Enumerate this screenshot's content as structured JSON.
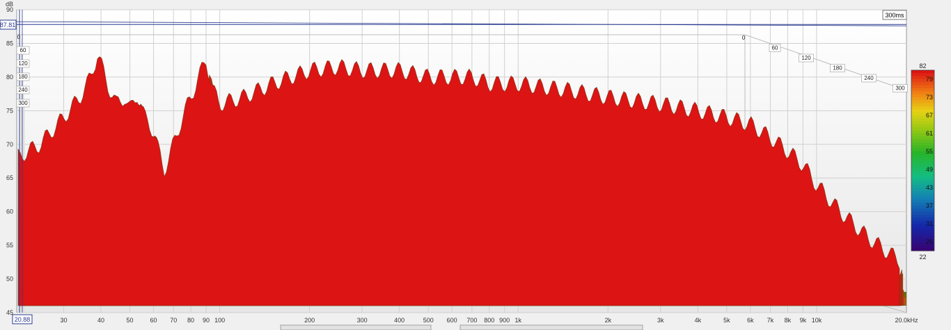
{
  "chart_data": {
    "type": "waterfall",
    "y_unit": "dB",
    "y_ticks": [
      "90",
      "85",
      "80",
      "75",
      "70",
      "65",
      "60",
      "55",
      "50",
      "45"
    ],
    "ylim": [
      45,
      90
    ],
    "x_ticks": [
      "30",
      "40",
      "50",
      "60",
      "70",
      "80",
      "90",
      "100",
      "200",
      "300",
      "400",
      "500",
      "600",
      "700",
      "800",
      "900",
      "1k",
      "2k",
      "3k",
      "4k",
      "5k",
      "6k",
      "7k",
      "8k",
      "9k",
      "10k",
      "20.0kHz"
    ],
    "xlim_hz": [
      20.88,
      20000
    ],
    "cursor_freq_label": "20.88",
    "cursor_level_label": "87.81",
    "time_label": "300ms",
    "time_ticks_left": [
      "0",
      "60",
      "120",
      "180",
      "240",
      "300"
    ],
    "time_ticks_right": [
      "0",
      "60",
      "120",
      "180",
      "240",
      "300"
    ],
    "colorbar": {
      "top": "82",
      "bottom": "22",
      "ticks": [
        "79",
        "73",
        "67",
        "61",
        "55",
        "49",
        "43",
        "37",
        "31",
        "25"
      ],
      "min": 22,
      "max": 82
    },
    "front_slice": [
      [
        20.88,
        68
      ],
      [
        25,
        70
      ],
      [
        30,
        74
      ],
      [
        34,
        77
      ],
      [
        37,
        80
      ],
      [
        39,
        83.5
      ],
      [
        42,
        79
      ],
      [
        45,
        76
      ],
      [
        48,
        77
      ],
      [
        50,
        75
      ],
      [
        53,
        77.5
      ],
      [
        56,
        74
      ],
      [
        60,
        72
      ],
      [
        65,
        66
      ],
      [
        70,
        70
      ],
      [
        75,
        74
      ],
      [
        80,
        77
      ],
      [
        85,
        80
      ],
      [
        90,
        82.5
      ],
      [
        95,
        78
      ],
      [
        100,
        76
      ],
      [
        120,
        77
      ],
      [
        150,
        79
      ],
      [
        200,
        81
      ],
      [
        250,
        81.5
      ],
      [
        300,
        81
      ],
      [
        400,
        81
      ],
      [
        500,
        80
      ],
      [
        600,
        80
      ],
      [
        700,
        80
      ],
      [
        800,
        79
      ],
      [
        1000,
        79
      ],
      [
        1500,
        78
      ],
      [
        2000,
        77
      ],
      [
        3000,
        76
      ],
      [
        4000,
        75
      ],
      [
        5000,
        74
      ],
      [
        6000,
        73
      ],
      [
        7000,
        71
      ],
      [
        8000,
        69
      ],
      [
        9000,
        67
      ],
      [
        10000,
        64
      ],
      [
        12000,
        60
      ],
      [
        15000,
        56
      ],
      [
        20000,
        52
      ]
    ]
  }
}
